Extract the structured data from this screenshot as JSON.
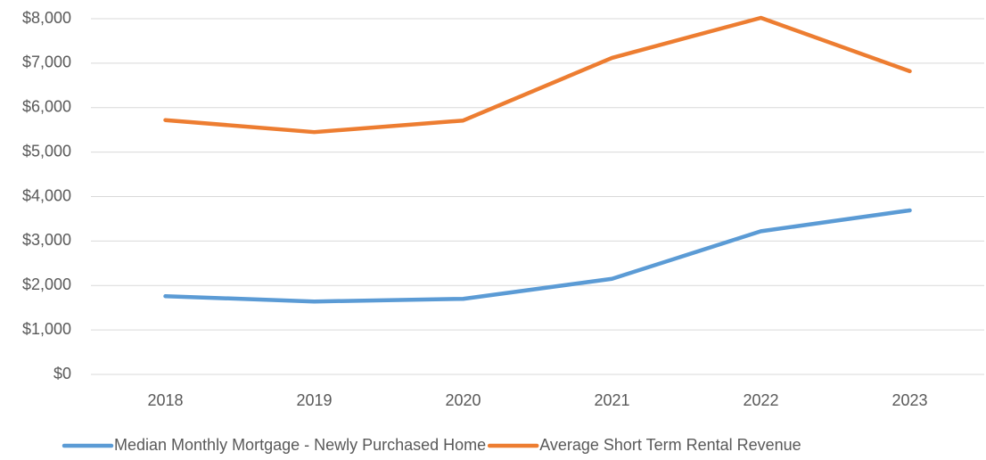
{
  "chart_data": {
    "type": "line",
    "categories": [
      "2018",
      "2019",
      "2020",
      "2021",
      "2022",
      "2023"
    ],
    "series": [
      {
        "name": "Median Monthly Mortgage - Newly Purchased Home",
        "color": "#5b9bd5",
        "values": [
          1760,
          1640,
          1700,
          2150,
          3220,
          3690
        ]
      },
      {
        "name": "Average Short Term Rental Revenue",
        "color": "#ed7d31",
        "values": [
          5720,
          5450,
          5710,
          7120,
          8020,
          6820
        ]
      }
    ],
    "ylim": [
      0,
      8000
    ],
    "yticks": [
      {
        "value": 0,
        "label": "$0"
      },
      {
        "value": 1000,
        "label": "$1,000"
      },
      {
        "value": 2000,
        "label": "$2,000"
      },
      {
        "value": 3000,
        "label": "$3,000"
      },
      {
        "value": 4000,
        "label": "$4,000"
      },
      {
        "value": 5000,
        "label": "$5,000"
      },
      {
        "value": 6000,
        "label": "$6,000"
      },
      {
        "value": 7000,
        "label": "$7,000"
      },
      {
        "value": 8000,
        "label": "$8,000"
      }
    ],
    "grid": true,
    "legend": "bottom"
  }
}
